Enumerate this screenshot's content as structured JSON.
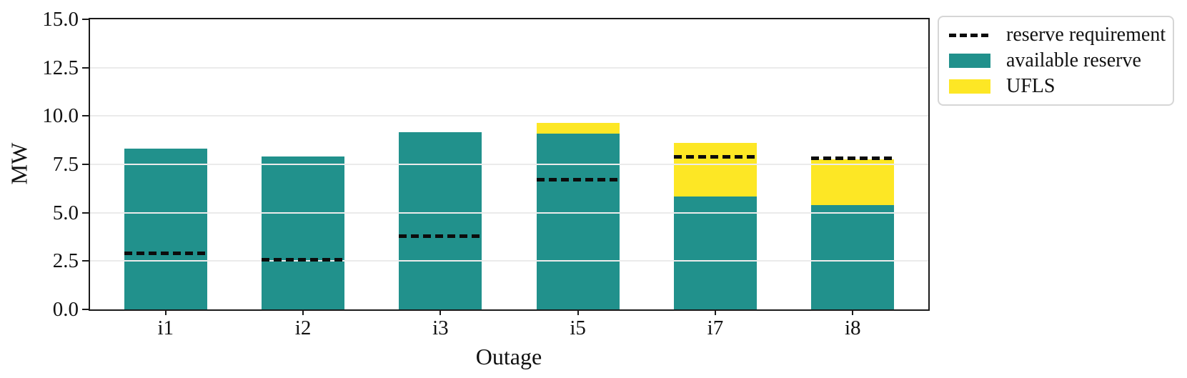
{
  "figure": {
    "background": "#ffffff",
    "spine_color": "#1a1a1a",
    "grid_color": "#ebebeb",
    "text_color": "#111111"
  },
  "legend": {
    "border_color": "#d6d6d6",
    "items": [
      {
        "type": "dashed-line",
        "color": "#0c0c0c",
        "label": "reserve requirement"
      },
      {
        "type": "swatch",
        "color": "#21918c",
        "label": "available reserve"
      },
      {
        "type": "swatch",
        "color": "#fde725",
        "label": "UFLS"
      }
    ]
  },
  "chart_data": {
    "type": "bar",
    "stacked": true,
    "title": "",
    "xlabel": "Outage",
    "ylabel": "MW",
    "categories": [
      "i1",
      "i2",
      "i3",
      "i5",
      "i7",
      "i8"
    ],
    "series": [
      {
        "name": "available reserve",
        "color": "#21918c",
        "values": [
          8.3,
          7.9,
          9.15,
          9.1,
          5.85,
          5.4
        ]
      },
      {
        "name": "UFLS",
        "color": "#fde725",
        "values": [
          0,
          0,
          0,
          0.55,
          2.75,
          2.35
        ]
      }
    ],
    "reserve_requirement": {
      "name": "reserve requirement",
      "color": "#0c0c0c",
      "style": "dashed",
      "values": [
        2.9,
        2.55,
        3.8,
        6.7,
        7.9,
        7.8
      ]
    },
    "ylim": [
      0,
      15
    ],
    "yticks": [
      0.0,
      2.5,
      5.0,
      7.5,
      10.0,
      12.5,
      15.0
    ],
    "grid": true,
    "legend_position": "outside upper right"
  }
}
